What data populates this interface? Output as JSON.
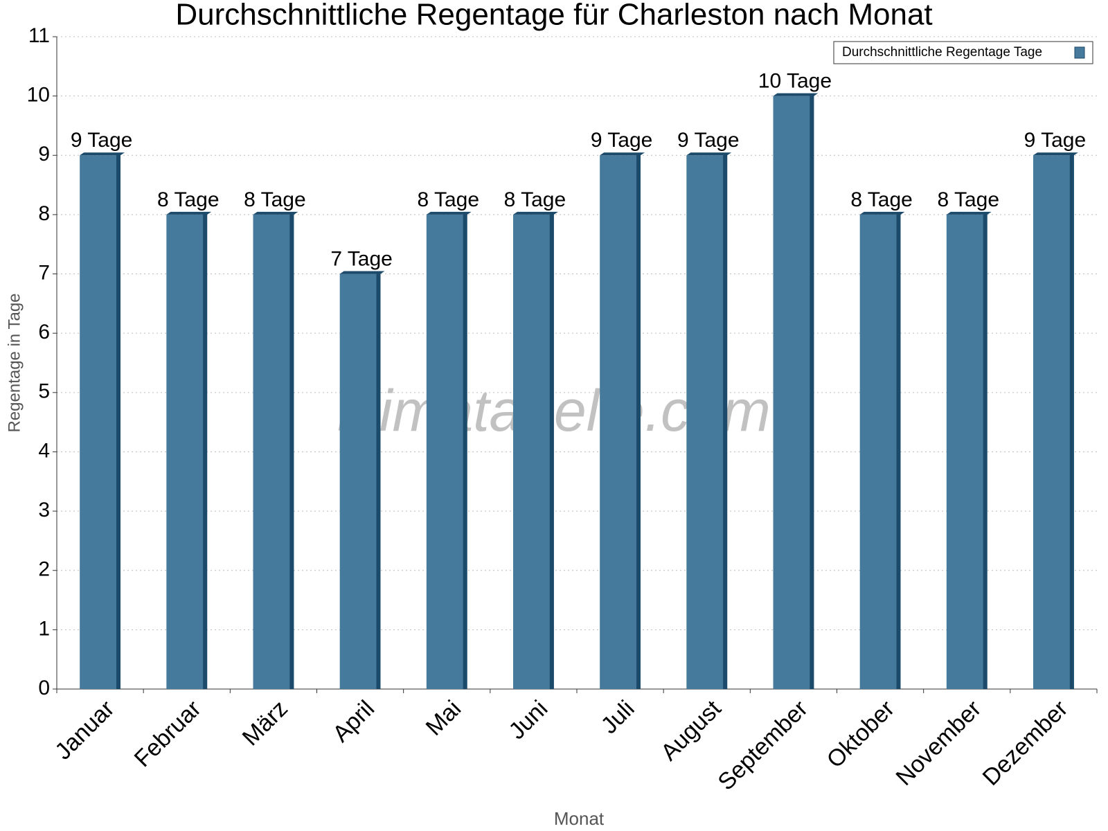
{
  "chart_data": {
    "type": "bar",
    "title": "Durchschnittliche Regentage für Charleston nach Monat",
    "x_label": "Monat",
    "y_label": "Regentage in Tage",
    "watermark": "klimatabelle.com",
    "categories": [
      "Januar",
      "Februar",
      "März",
      "April",
      "Mai",
      "Juni",
      "Juli",
      "August",
      "September",
      "Oktober",
      "November",
      "Dezember"
    ],
    "series": [
      {
        "name": "Durchschnittliche Regentage Tage",
        "color": "#467a9c",
        "values": [
          9,
          8,
          8,
          7,
          8,
          8,
          9,
          9,
          10,
          8,
          8,
          9
        ],
        "value_labels": [
          "9 Tage",
          "8 Tage",
          "8 Tage",
          "7 Tage",
          "8 Tage",
          "8 Tage",
          "9 Tage",
          "9 Tage",
          "10 Tage",
          "8 Tage",
          "8 Tage",
          "9 Tage"
        ]
      }
    ],
    "ylim": [
      0,
      11
    ],
    "yticks": [
      0,
      1,
      2,
      3,
      4,
      5,
      6,
      7,
      8,
      9,
      10,
      11
    ],
    "grid": true,
    "legend": "top-right"
  }
}
